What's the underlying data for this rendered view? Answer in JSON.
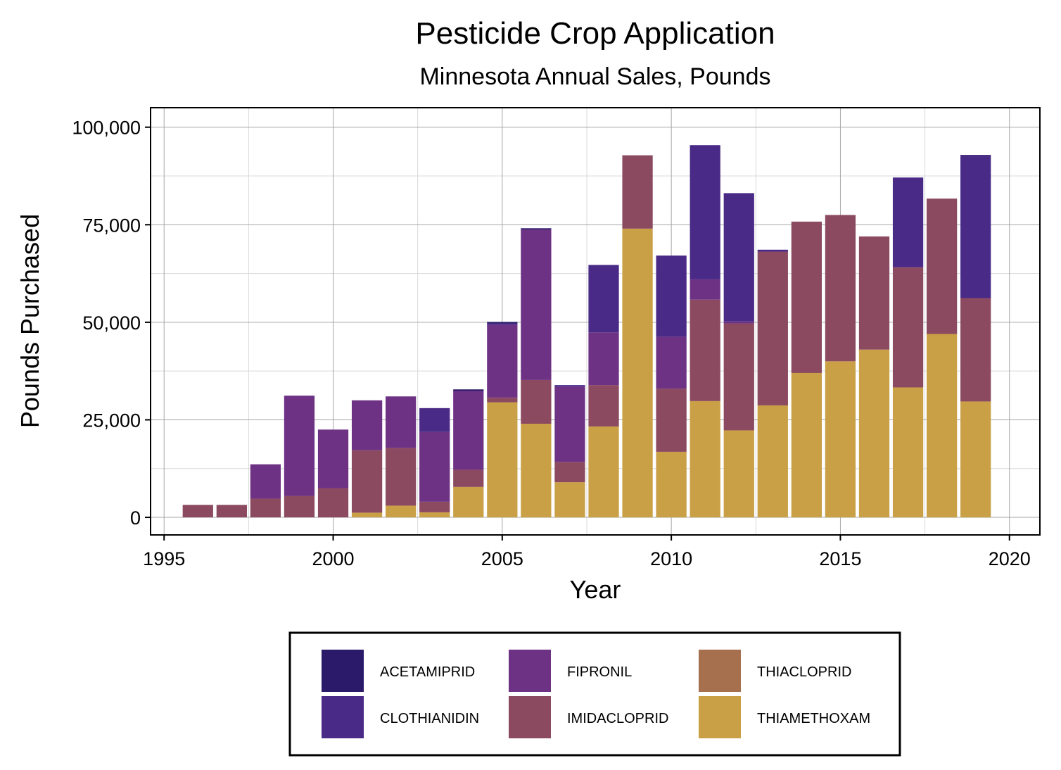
{
  "chart_data": {
    "type": "bar",
    "title": "Pesticide Crop Application",
    "subtitle": "Minnesota Annual Sales, Pounds",
    "xlabel": "Year",
    "ylabel": "Pounds Purchased",
    "xlim": [
      1994.6,
      2020.9
    ],
    "ylim": [
      -4500,
      105000
    ],
    "x_ticks": [
      1995,
      2000,
      2005,
      2010,
      2015,
      2020
    ],
    "x_tick_labels": [
      "1995",
      "2000",
      "2005",
      "2010",
      "2015",
      "2020"
    ],
    "y_ticks": [
      0,
      25000,
      50000,
      75000,
      100000
    ],
    "y_tick_labels": [
      "0",
      "25,000",
      "50,000",
      "75,000",
      "100,000"
    ],
    "grid": true,
    "legend_position": "bottom",
    "categories": [
      1996,
      1997,
      1998,
      1999,
      2000,
      2001,
      2002,
      2003,
      2004,
      2005,
      2006,
      2007,
      2008,
      2009,
      2010,
      2011,
      2012,
      2013,
      2014,
      2015,
      2016,
      2017,
      2018,
      2019
    ],
    "series": [
      {
        "name": "THIAMETHOXAM",
        "color": "#C9A046",
        "values": [
          0,
          0,
          0,
          0,
          0,
          1200,
          3000,
          1300,
          7800,
          29500,
          24000,
          9000,
          23300,
          74000,
          16800,
          29800,
          22300,
          28700,
          37000,
          40000,
          43000,
          33300,
          47000,
          29700
        ]
      },
      {
        "name": "THIACLOPRID",
        "color": "#A66F4E",
        "values": [
          0,
          0,
          0,
          0,
          0,
          0,
          0,
          0,
          0,
          0,
          0,
          0,
          0,
          0,
          0,
          0,
          0,
          0,
          0,
          0,
          0,
          0,
          0,
          0
        ]
      },
      {
        "name": "IMIDACLOPRID",
        "color": "#8B4A60",
        "values": [
          3200,
          3200,
          4800,
          5500,
          7500,
          16000,
          14800,
          2700,
          4400,
          1200,
          11200,
          5200,
          10600,
          18800,
          16200,
          26000,
          27400,
          39400,
          38800,
          37500,
          29000,
          30800,
          34700,
          26500
        ]
      },
      {
        "name": "FIPRONIL",
        "color": "#6E3285",
        "values": [
          0,
          0,
          8800,
          25700,
          15000,
          12800,
          13200,
          17900,
          20200,
          18600,
          38600,
          19300,
          13500,
          0,
          13300,
          5200,
          500,
          0,
          0,
          0,
          0,
          0,
          0,
          0
        ]
      },
      {
        "name": "CLOTHIANIDIN",
        "color": "#4A2A87",
        "values": [
          0,
          0,
          0,
          0,
          0,
          0,
          0,
          6100,
          0,
          400,
          0,
          400,
          17300,
          0,
          20800,
          34400,
          32900,
          500,
          0,
          0,
          0,
          23000,
          0,
          36500
        ]
      },
      {
        "name": "ACETAMIPRID",
        "color": "#2B1A6A",
        "values": [
          0,
          0,
          0,
          0,
          0,
          0,
          0,
          0,
          400,
          400,
          300,
          0,
          0,
          0,
          0,
          0,
          0,
          0,
          0,
          0,
          0,
          0,
          0,
          200
        ]
      }
    ]
  },
  "legend": {
    "items": [
      {
        "label": "ACETAMIPRID",
        "color": "#2B1A6A"
      },
      {
        "label": "CLOTHIANIDIN",
        "color": "#4A2A87"
      },
      {
        "label": "FIPRONIL",
        "color": "#6E3285"
      },
      {
        "label": "IMIDACLOPRID",
        "color": "#8B4A60"
      },
      {
        "label": "THIACLOPRID",
        "color": "#A66F4E"
      },
      {
        "label": "THIAMETHOXAM",
        "color": "#C9A046"
      }
    ]
  }
}
